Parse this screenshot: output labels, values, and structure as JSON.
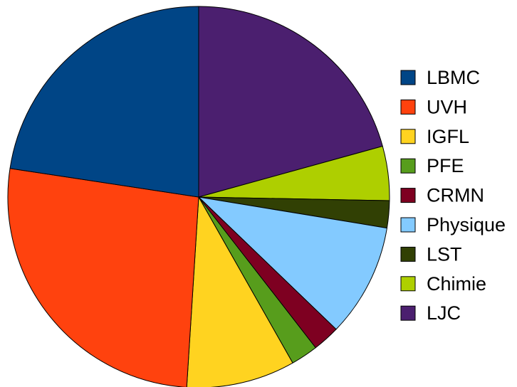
{
  "chart_data": {
    "type": "pie",
    "title": "",
    "legend_position": "right",
    "start_angle_deg": 0,
    "direction": "clockwise",
    "slices": [
      {
        "label": "LJC",
        "value": 20.7,
        "color": "#4b1f6f"
      },
      {
        "label": "Chimie",
        "value": 4.6,
        "color": "#aecf00"
      },
      {
        "label": "LST",
        "value": 2.3,
        "color": "#314004"
      },
      {
        "label": "Physique",
        "value": 9.6,
        "color": "#83caff"
      },
      {
        "label": "CRMN",
        "value": 2.3,
        "color": "#7e0021"
      },
      {
        "label": "PFE",
        "value": 2.3,
        "color": "#579d1c"
      },
      {
        "label": "IGFL",
        "value": 9.2,
        "color": "#ffd320"
      },
      {
        "label": "UVH",
        "value": 26.4,
        "color": "#ff420e"
      },
      {
        "label": "LBMC",
        "value": 22.6,
        "color": "#004586"
      }
    ],
    "legend": [
      "LBMC",
      "UVH",
      "IGFL",
      "PFE",
      "CRMN",
      "Physique",
      "LST",
      "Chimie",
      "LJC"
    ]
  }
}
